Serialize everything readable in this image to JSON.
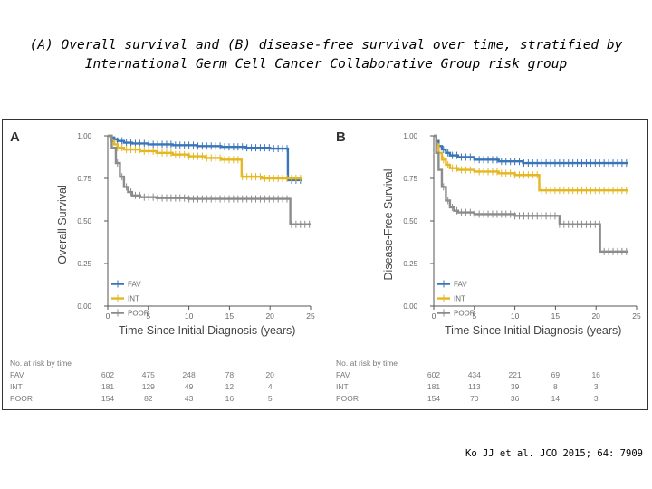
{
  "slide": {
    "title_line1": "(A) Overall survival and (B) disease-free survival over time, stratified by",
    "title_line2": "International Germ Cell Cancer Collaborative Group risk group",
    "citation": "Ko JJ et al. JCO 2015; 64: 7909"
  },
  "colors": {
    "FAV": "#3a75b8",
    "INT": "#e5b722",
    "POOR": "#8c8c8c"
  },
  "chart_data": [
    {
      "panel": "A",
      "type": "line",
      "step": true,
      "xlabel": "Time Since Initial Diagnosis (years)",
      "ylabel": "Overall Survival",
      "xlim": [
        0,
        25
      ],
      "ylim": [
        0,
        1
      ],
      "xticks": [
        0,
        5,
        10,
        15,
        20,
        25
      ],
      "yticks": [
        "0.00",
        "0.25",
        "0.50",
        "0.75",
        "1.00"
      ],
      "legend": [
        "FAV",
        "INT",
        "POOR"
      ],
      "legend_position": "bottom-left",
      "series": [
        {
          "name": "FAV",
          "x": [
            0,
            0.4,
            0.8,
            1.2,
            2,
            3,
            5,
            8,
            11,
            14,
            17,
            20,
            22.2,
            22.2,
            24
          ],
          "y": [
            1.0,
            0.99,
            0.98,
            0.97,
            0.96,
            0.955,
            0.95,
            0.945,
            0.94,
            0.935,
            0.93,
            0.925,
            0.925,
            0.74,
            0.74
          ]
        },
        {
          "name": "INT",
          "x": [
            0,
            0.4,
            0.8,
            1.2,
            2,
            4,
            6,
            8,
            10,
            12,
            14,
            16.5,
            16.5,
            19,
            21,
            24
          ],
          "y": [
            1.0,
            0.97,
            0.95,
            0.93,
            0.92,
            0.91,
            0.9,
            0.89,
            0.88,
            0.87,
            0.86,
            0.84,
            0.76,
            0.75,
            0.75,
            0.75
          ]
        },
        {
          "name": "POOR",
          "x": [
            0,
            0.5,
            1,
            1.5,
            2,
            2.5,
            3,
            4,
            6,
            10,
            15,
            22.5,
            22.5,
            25
          ],
          "y": [
            1.0,
            0.93,
            0.84,
            0.76,
            0.7,
            0.67,
            0.65,
            0.64,
            0.635,
            0.63,
            0.63,
            0.63,
            0.48,
            0.48
          ]
        }
      ],
      "risk_table": {
        "header": "No. at risk by time",
        "rows": [
          {
            "label": "FAV",
            "values": [
              "602",
              "475",
              "248",
              "78",
              "20"
            ]
          },
          {
            "label": "INT",
            "values": [
              "181",
              "129",
              "49",
              "12",
              "4"
            ]
          },
          {
            "label": "POOR",
            "values": [
              "154",
              "82",
              "43",
              "16",
              "5"
            ]
          }
        ]
      }
    },
    {
      "panel": "B",
      "type": "line",
      "step": true,
      "xlabel": "Time Since Initial Diagnosis (years)",
      "ylabel": "Disease-Free Survival",
      "xlim": [
        0,
        25
      ],
      "ylim": [
        0,
        1
      ],
      "xticks": [
        0,
        5,
        10,
        15,
        20,
        25
      ],
      "yticks": [
        "0.00",
        "0.25",
        "0.50",
        "0.75",
        "1.00"
      ],
      "legend": [
        "FAV",
        "INT",
        "POOR"
      ],
      "legend_position": "bottom-left",
      "series": [
        {
          "name": "FAV",
          "x": [
            0,
            0.3,
            0.6,
            1,
            1.5,
            2,
            3,
            5,
            8,
            11,
            24
          ],
          "y": [
            1.0,
            0.97,
            0.94,
            0.92,
            0.9,
            0.885,
            0.875,
            0.86,
            0.85,
            0.84,
            0.84
          ]
        },
        {
          "name": "INT",
          "x": [
            0,
            0.3,
            0.6,
            1,
            1.5,
            2,
            3,
            5,
            8,
            10,
            13,
            13,
            24
          ],
          "y": [
            1.0,
            0.95,
            0.9,
            0.86,
            0.83,
            0.81,
            0.8,
            0.79,
            0.78,
            0.77,
            0.77,
            0.68,
            0.68
          ]
        },
        {
          "name": "POOR",
          "x": [
            0,
            0.3,
            0.6,
            1,
            1.5,
            2,
            2.5,
            3,
            5,
            10,
            15.5,
            15.5,
            20.5,
            20.5,
            24
          ],
          "y": [
            1.0,
            0.9,
            0.8,
            0.7,
            0.62,
            0.58,
            0.56,
            0.55,
            0.54,
            0.53,
            0.53,
            0.48,
            0.48,
            0.32,
            0.32
          ]
        }
      ],
      "risk_table": {
        "header": "No. at risk by time",
        "rows": [
          {
            "label": "FAV",
            "values": [
              "602",
              "434",
              "221",
              "69",
              "16"
            ]
          },
          {
            "label": "INT",
            "values": [
              "181",
              "113",
              "39",
              "8",
              "3"
            ]
          },
          {
            "label": "POOR",
            "values": [
              "154",
              "70",
              "36",
              "14",
              "3"
            ]
          }
        ]
      }
    }
  ]
}
